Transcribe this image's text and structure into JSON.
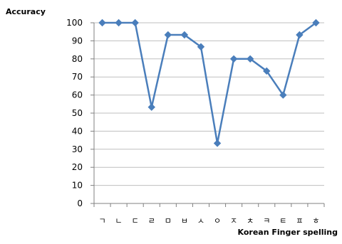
{
  "chart_data": {
    "type": "line",
    "ylabel": "Accuracy",
    "xlabel": "Korean Finger spelling",
    "categories": [
      "ㄱ",
      "ㄴ",
      "ㄷ",
      "ㄹ",
      "ㅁ",
      "ㅂ",
      "ㅅ",
      "ㅇ",
      "ㅈ",
      "ㅊ",
      "ㅋ",
      "ㅌ",
      "ㅍ",
      "ㅎ"
    ],
    "series": [
      {
        "values": [
          100,
          100,
          100,
          53.3,
          93.3,
          93.3,
          86.7,
          33.3,
          80,
          80,
          73.3,
          60,
          93.3,
          100
        ]
      }
    ],
    "ylim": [
      0,
      100
    ],
    "yticks": [
      0,
      10,
      20,
      30,
      40,
      50,
      60,
      70,
      80,
      90,
      100
    ],
    "grid": true,
    "line_color": "#4A7EBB",
    "grid_color": "#BFBFBF",
    "marker": "diamond"
  }
}
